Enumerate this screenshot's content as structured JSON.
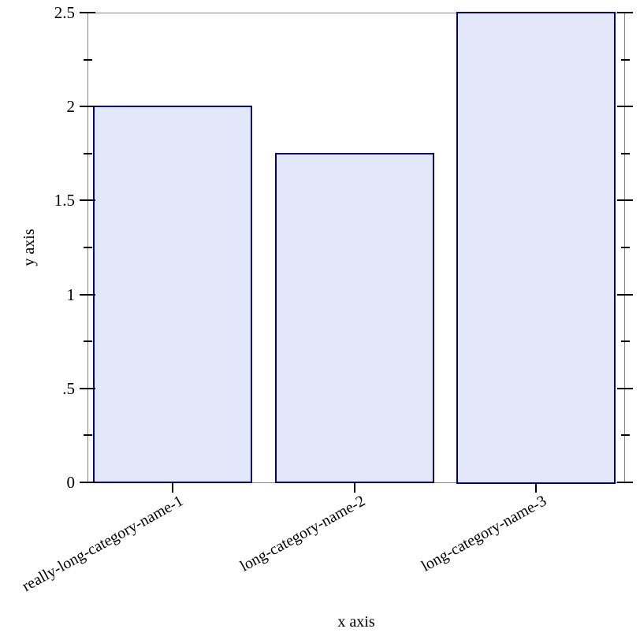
{
  "chart_data": {
    "type": "bar",
    "title": "",
    "xlabel": "x axis",
    "ylabel": "y axis",
    "categories": [
      "really-long-category-name-1",
      "long-category-name-2",
      "long-category-name-3"
    ],
    "values": [
      2,
      1.75,
      2.5
    ],
    "ylim": [
      0,
      2.5
    ],
    "y_major_ticks": [
      0,
      0.5,
      1,
      1.5,
      2,
      2.5
    ],
    "y_major_tick_labels": [
      "0",
      ".5",
      "1",
      "1.5",
      "2",
      "2.5"
    ],
    "y_minor_ticks": [
      0.25,
      0.75,
      1.25,
      1.75,
      2.25
    ],
    "grid": false,
    "legend": "none",
    "colors": {
      "bar_fill": "#e2e8fa",
      "bar_border": "#000080",
      "axis_frame": "#878787",
      "tick": "#000000",
      "text": "#000000",
      "background": "#ffffff"
    }
  }
}
